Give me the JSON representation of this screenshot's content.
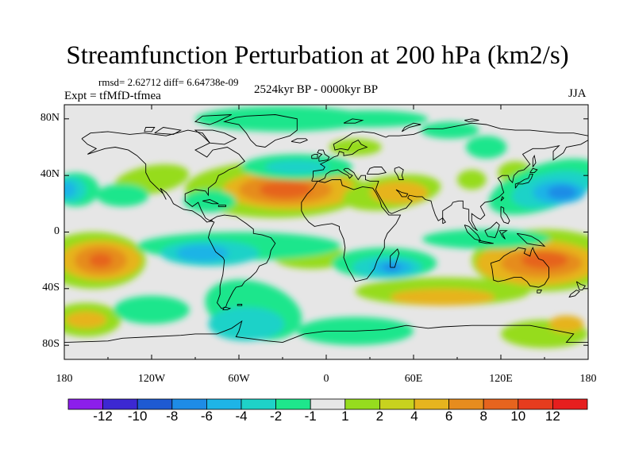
{
  "title": "Streamfunction Perturbation at 200 hPa (km2/s)",
  "stats": "rmsd= 2.62712 diff= 6.64738e-09",
  "experiment": "Expt = tfMfD-tfmea",
  "period": "2524kyr BP - 0000kyr BP",
  "season": "JJA",
  "chart_data": {
    "type": "heatmap",
    "projection": "cylindrical-equidistant",
    "title": "Streamfunction Perturbation at 200 hPa (km2/s)",
    "units": "km2/s",
    "xlim": [
      -180,
      180
    ],
    "ylim": [
      -90,
      90
    ],
    "x_ticks": [
      {
        "value": -180,
        "label": "180"
      },
      {
        "value": -120,
        "label": "120W"
      },
      {
        "value": -60,
        "label": "60W"
      },
      {
        "value": 0,
        "label": "0"
      },
      {
        "value": 60,
        "label": "60E"
      },
      {
        "value": 120,
        "label": "120E"
      },
      {
        "value": 180,
        "label": "180"
      }
    ],
    "y_ticks": [
      {
        "value": 80,
        "label": "80N"
      },
      {
        "value": 40,
        "label": "40N"
      },
      {
        "value": 0,
        "label": "0"
      },
      {
        "value": -40,
        "label": "40S"
      },
      {
        "value": -80,
        "label": "80S"
      }
    ],
    "colorbar": {
      "levels": [
        "-12",
        "-10",
        "-8",
        "-6",
        "-4",
        "-2",
        "-1",
        "1",
        "2",
        "4",
        "6",
        "8",
        "10",
        "12"
      ],
      "colors": [
        "#8c1eeb",
        "#3c28d2",
        "#1e5ad2",
        "#1e8ce6",
        "#1eb4e6",
        "#1ed2c8",
        "#1ee68c",
        "#e6e6e6",
        "#96dc1e",
        "#c8d21e",
        "#e6b41e",
        "#e68c1e",
        "#e6641e",
        "#e63c1e",
        "#e61e1e"
      ]
    },
    "features": [
      {
        "name": "N Atlantic/N Africa high",
        "lon": -20,
        "lat": 30,
        "value": 8
      },
      {
        "name": "Arabia high",
        "lon": 50,
        "lat": 28,
        "value": 4
      },
      {
        "name": "Australia high",
        "lon": 145,
        "lat": -20,
        "value": 8
      },
      {
        "name": "S Pacific high",
        "lon": -150,
        "lat": -20,
        "value": 8
      },
      {
        "name": "S Indian Ocean low",
        "lon": 45,
        "lat": -25,
        "value": -8
      },
      {
        "name": "S America low",
        "lon": -80,
        "lat": -15,
        "value": -4
      },
      {
        "name": "NW Pacific low",
        "lon": 160,
        "lat": 28,
        "value": -8
      },
      {
        "name": "NE Pacific low",
        "lon": -175,
        "lat": 30,
        "value": -6
      },
      {
        "name": "N Atlantic low",
        "lon": -20,
        "lat": 45,
        "value": -4
      },
      {
        "name": "Arctic low",
        "lon": -30,
        "lat": 75,
        "value": -2
      },
      {
        "name": "Southern Ocean low",
        "lon": -60,
        "lat": -65,
        "value": -4
      }
    ]
  }
}
